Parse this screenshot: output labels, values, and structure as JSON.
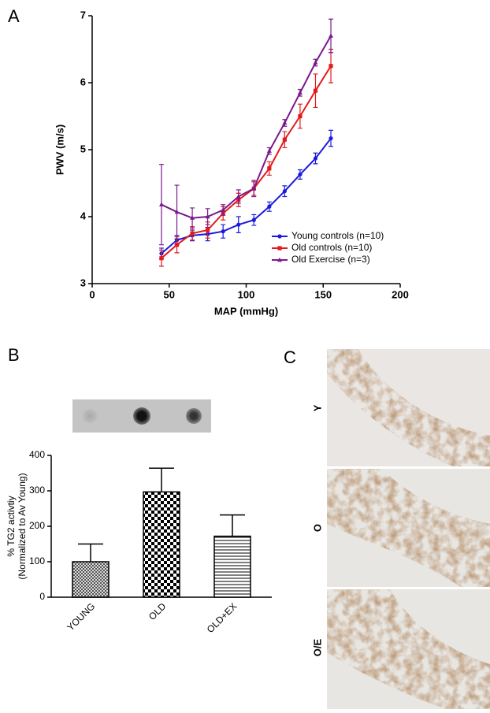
{
  "panel_labels": [
    "A",
    "B",
    "C"
  ],
  "chart_data": [
    {
      "type": "line",
      "xlabel": "MAP (mmHg)",
      "ylabel": "PWV (m/s)",
      "x": [
        45,
        55,
        65,
        75,
        85,
        95,
        105,
        115,
        125,
        135,
        145,
        155
      ],
      "series": [
        {
          "name": "Young controls (n=10)",
          "color": "#1a1adb",
          "marker": "circle",
          "values": [
            3.45,
            3.65,
            3.72,
            3.74,
            3.78,
            3.88,
            3.95,
            4.15,
            4.38,
            4.63,
            4.87,
            5.17
          ],
          "errors": [
            0.08,
            0.07,
            0.08,
            0.1,
            0.1,
            0.12,
            0.08,
            0.07,
            0.08,
            0.07,
            0.08,
            0.12
          ]
        },
        {
          "name": "Old controls (n=10)",
          "color": "#e31a1a",
          "marker": "square",
          "values": [
            3.38,
            3.58,
            3.75,
            3.8,
            4.05,
            4.25,
            4.42,
            4.72,
            5.15,
            5.5,
            5.88,
            6.25
          ],
          "errors": [
            0.12,
            0.12,
            0.1,
            0.12,
            0.1,
            0.1,
            0.1,
            0.1,
            0.12,
            0.18,
            0.25,
            0.25
          ]
        },
        {
          "name": "Old Exercise (n=3)",
          "color": "#7a1a8c",
          "marker": "triangle",
          "values": [
            4.18,
            4.07,
            3.98,
            4.0,
            4.1,
            4.3,
            4.42,
            4.98,
            5.4,
            5.85,
            6.3,
            6.7
          ],
          "errors": [
            0.6,
            0.4,
            0.15,
            0.12,
            0.08,
            0.1,
            0.12,
            0.05,
            0.05,
            0.05,
            0.05,
            0.25
          ]
        }
      ],
      "xlim": [
        0,
        200
      ],
      "xticks": [
        0,
        50,
        100,
        150,
        200
      ],
      "ylim": [
        3,
        7
      ],
      "yticks": [
        3,
        4,
        5,
        6,
        7
      ],
      "legend": "lower right"
    },
    {
      "type": "bar",
      "ylabel": [
        "% TG2 activtiy",
        "(Normalized to Av Young)"
      ],
      "categories": [
        "YOUNG",
        "OLD",
        "OLD+EX"
      ],
      "values": [
        100,
        297,
        172
      ],
      "errors": [
        50,
        67,
        60
      ],
      "ylim": [
        0,
        400
      ],
      "yticks": [
        0,
        100,
        200,
        300,
        400
      ]
    }
  ],
  "histology": {
    "rows": [
      "Y",
      "O",
      "O/E"
    ]
  }
}
